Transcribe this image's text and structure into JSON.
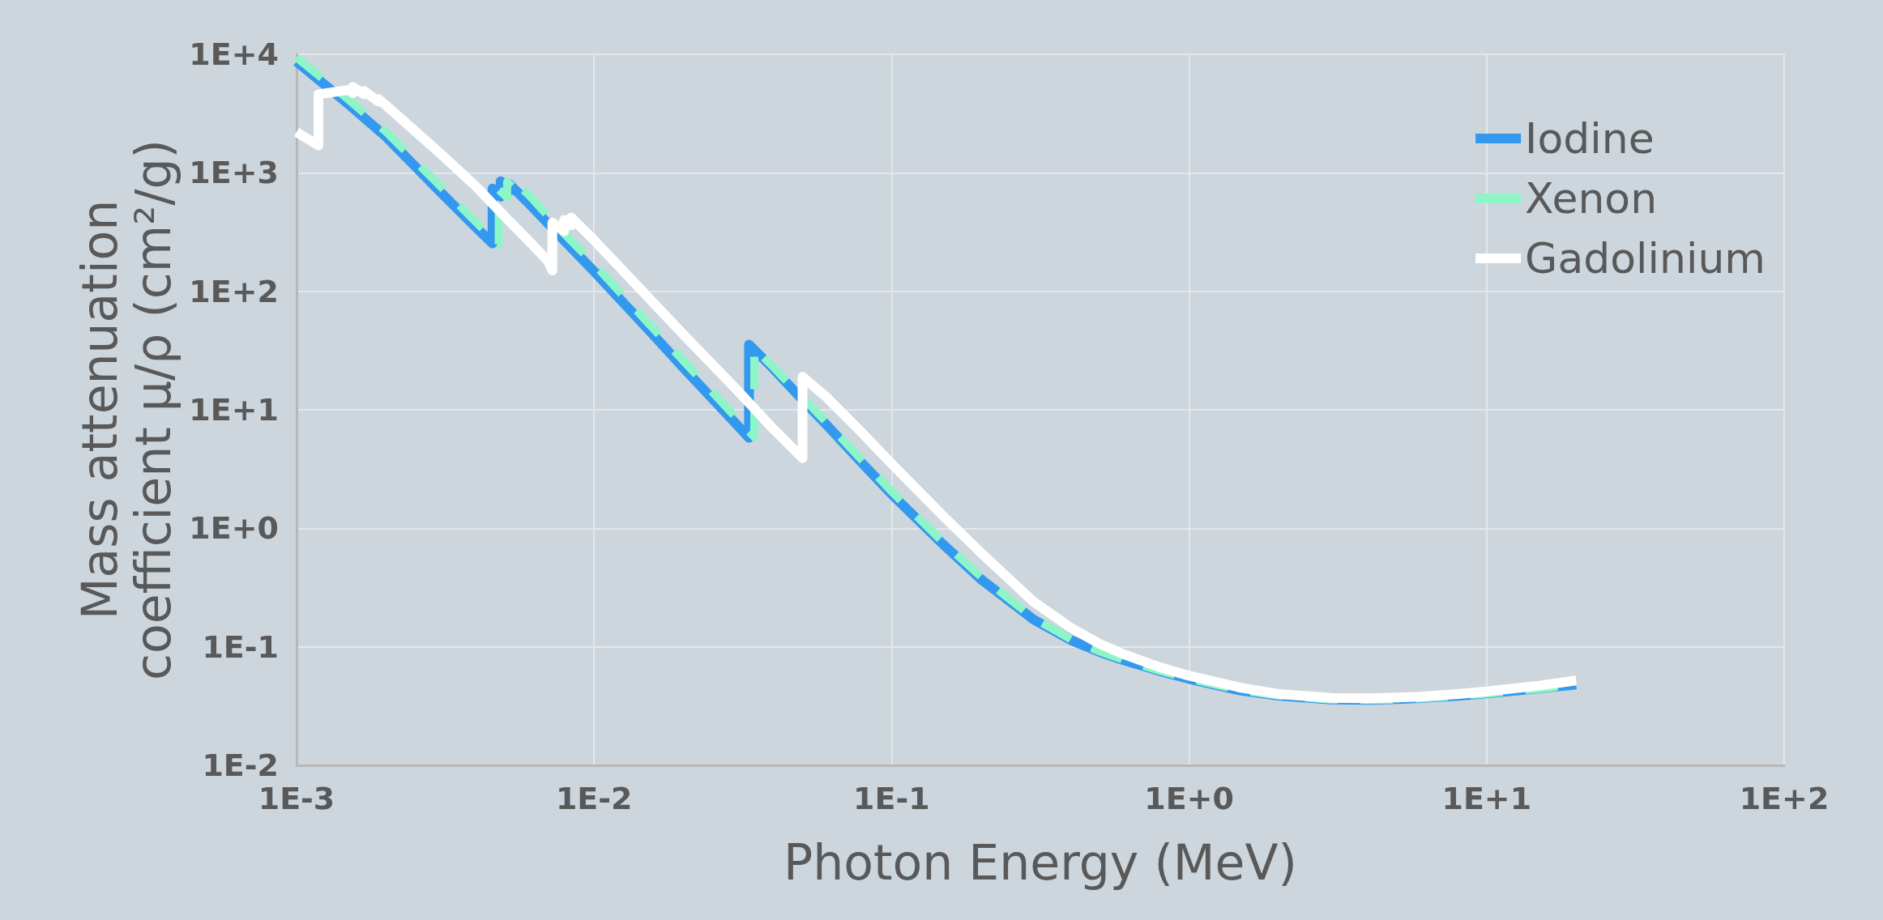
{
  "chart_data": {
    "type": "line",
    "xlabel": "Photon Energy (MeV)",
    "ylabel": "Mass attenuation coefficient μ/ρ (cm²/g)",
    "log": "xy",
    "grid": true,
    "legend": "top right",
    "xlim": [
      0.001,
      100
    ],
    "ylim": [
      0.01,
      10000
    ],
    "xticks": [
      {
        "value": 0.001,
        "label": "1E-3"
      },
      {
        "value": 0.01,
        "label": "1E-2"
      },
      {
        "value": 0.1,
        "label": "1E-1"
      },
      {
        "value": 1,
        "label": "1E+0"
      },
      {
        "value": 10,
        "label": "1E+1"
      },
      {
        "value": 100,
        "label": "1E+2"
      }
    ],
    "yticks": [
      {
        "value": 0.01,
        "label": "1E-2"
      },
      {
        "value": 0.1,
        "label": "1E-1"
      },
      {
        "value": 1,
        "label": "1E+0"
      },
      {
        "value": 10,
        "label": "1E+1"
      },
      {
        "value": 100,
        "label": "1E+2"
      },
      {
        "value": 1000,
        "label": "1E+3"
      },
      {
        "value": 10000,
        "label": "1E+4"
      }
    ],
    "series": [
      {
        "name": "Iodine",
        "color": "#3399ee",
        "line_style": "solid",
        "x": [
          0.001,
          0.0015,
          0.002,
          0.003,
          0.004,
          0.004557,
          0.004557,
          0.004852,
          0.004852,
          0.005188,
          0.005188,
          0.006,
          0.008,
          0.01,
          0.015,
          0.02,
          0.03,
          0.03317,
          0.03317,
          0.04,
          0.05,
          0.06,
          0.08,
          0.1,
          0.15,
          0.2,
          0.3,
          0.4,
          0.5,
          0.6,
          0.8,
          1,
          1.5,
          2,
          3,
          4,
          5,
          6,
          8,
          10,
          15,
          20
        ],
        "values": [
          8655,
          3760,
          2010,
          714,
          347,
          253,
          738,
          628,
          848,
          700,
          804,
          560,
          262,
          147,
          49.5,
          22.5,
          7.6,
          5.8,
          35.5,
          22.3,
          12.3,
          7.6,
          3.5,
          1.94,
          0.72,
          0.37,
          0.17,
          0.114,
          0.0905,
          0.0772,
          0.0622,
          0.0536,
          0.0426,
          0.0387,
          0.0359,
          0.0356,
          0.0362,
          0.0369,
          0.0386,
          0.0404,
          0.0445,
          0.048
        ]
      },
      {
        "name": "Xenon",
        "color": "#8ef5c8",
        "line_style": "dashed",
        "x": [
          0.001,
          0.0015,
          0.002,
          0.003,
          0.004,
          0.004782,
          0.004782,
          0.005104,
          0.005104,
          0.005453,
          0.005453,
          0.006,
          0.008,
          0.01,
          0.015,
          0.02,
          0.03,
          0.03456,
          0.03456,
          0.04,
          0.05,
          0.06,
          0.08,
          0.1,
          0.15,
          0.2,
          0.3,
          0.4,
          0.5,
          0.6,
          0.8,
          1,
          1.5,
          2,
          3,
          4,
          5,
          6,
          8,
          10,
          15,
          20
        ],
        "values": [
          9413,
          4120,
          2220,
          800,
          386,
          250,
          720,
          620,
          835,
          720,
          820,
          660,
          300,
          170,
          56,
          25.8,
          8.6,
          5.9,
          33.3,
          23,
          12.8,
          8,
          3.7,
          2.05,
          0.75,
          0.39,
          0.175,
          0.116,
          0.0914,
          0.0779,
          0.0626,
          0.0539,
          0.0428,
          0.0388,
          0.0359,
          0.0356,
          0.036,
          0.0368,
          0.0385,
          0.0403,
          0.0443,
          0.0478
        ]
      },
      {
        "name": "Gadolinium",
        "color": "#ffffff",
        "line_style": "solid",
        "x": [
          0.001,
          0.001185,
          0.001185,
          0.0015,
          0.001544,
          0.001544,
          0.001688,
          0.001688,
          0.001881,
          0.001881,
          0.002,
          0.003,
          0.004,
          0.005,
          0.006,
          0.007,
          0.00724,
          0.00724,
          0.00793,
          0.00793,
          0.00838,
          0.00838,
          0.01,
          0.02,
          0.03,
          0.04,
          0.0502,
          0.0502,
          0.06,
          0.08,
          0.1,
          0.15,
          0.2,
          0.3,
          0.4,
          0.5,
          0.6,
          0.8,
          1,
          1.5,
          2,
          3,
          4,
          5,
          6,
          8,
          10,
          15,
          20
        ],
        "values": [
          2200,
          1700,
          4600,
          5000,
          4700,
          5300,
          4600,
          4900,
          4000,
          4200,
          3700,
          1500,
          770,
          430,
          270,
          180,
          150,
          380,
          320,
          400,
          360,
          420,
          270,
          43,
          15,
          6.9,
          3.9,
          19,
          13,
          6.3,
          3.5,
          1.25,
          0.62,
          0.24,
          0.145,
          0.106,
          0.087,
          0.067,
          0.057,
          0.045,
          0.04,
          0.037,
          0.0367,
          0.0373,
          0.038,
          0.04,
          0.042,
          0.047,
          0.052
        ]
      }
    ]
  }
}
